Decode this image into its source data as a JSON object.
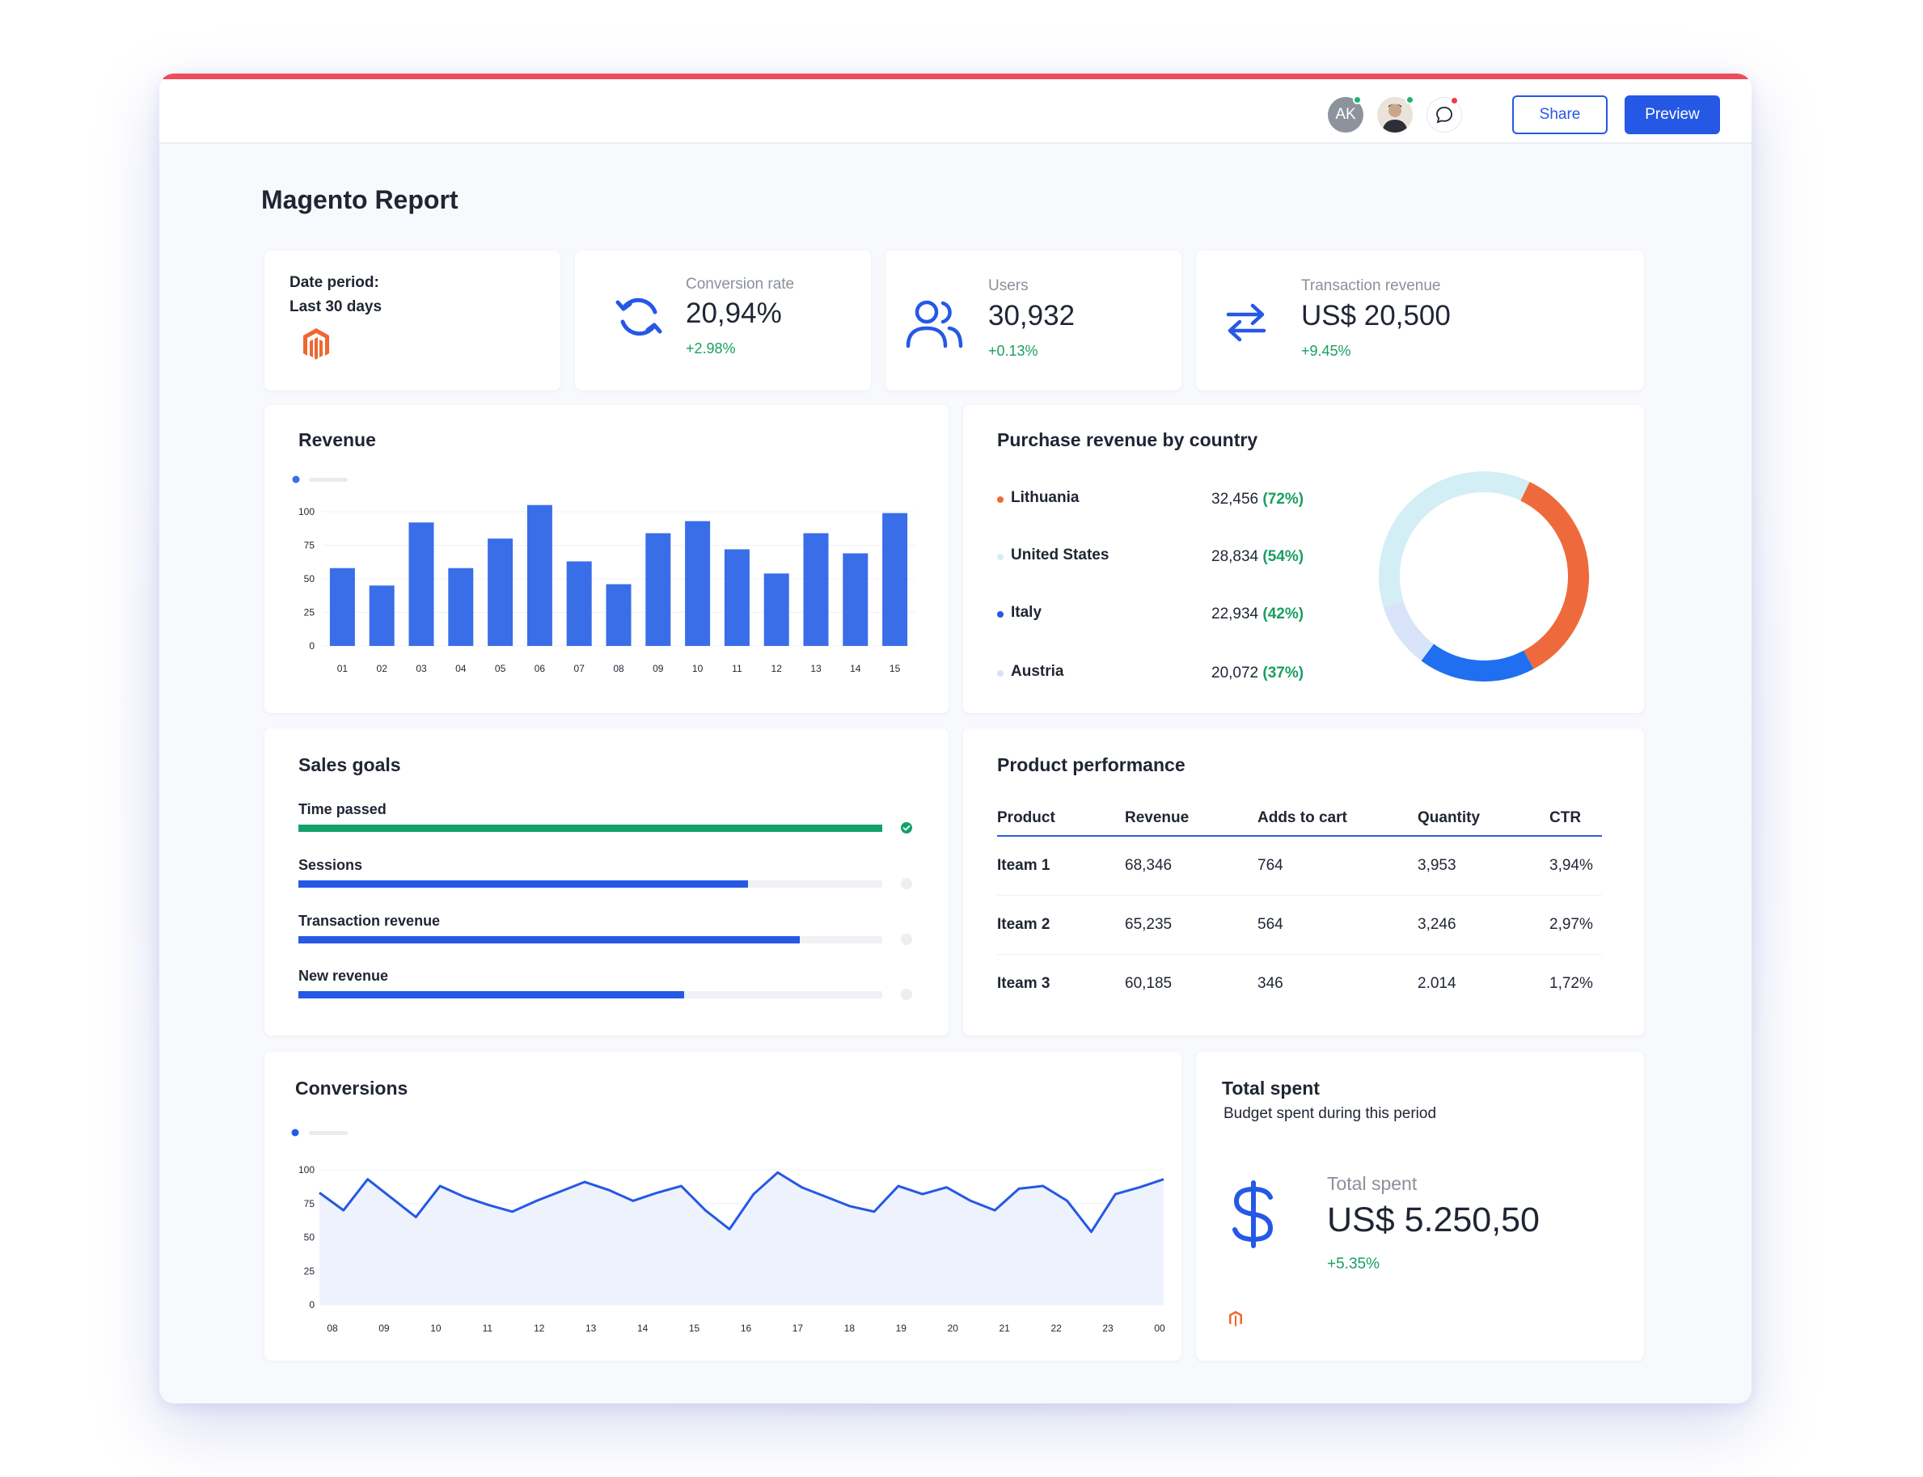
{
  "topbar": {
    "avatar_initials": "AK",
    "share_label": "Share",
    "preview_label": "Preview",
    "icons": [
      "chat-icon"
    ]
  },
  "page": {
    "title": "Magento Report"
  },
  "date_period": {
    "label": "Date period:",
    "value": "Last 30 days",
    "logo": "magento-logo"
  },
  "kpis": {
    "conversion": {
      "label": "Conversion rate",
      "value": "20,94%",
      "delta": "+2.98%",
      "icon": "refresh-icon"
    },
    "users": {
      "label": "Users",
      "value": "30,932",
      "delta": "+0.13%",
      "icon": "users-icon"
    },
    "transaction": {
      "label": "Transaction revenue",
      "value": "US$ 20,500",
      "delta": "+9.45%",
      "icon": "swap-arrows-icon"
    }
  },
  "revenue": {
    "title": "Revenue",
    "chart_data": {
      "type": "bar",
      "categories": [
        "01",
        "02",
        "03",
        "04",
        "05",
        "06",
        "07",
        "08",
        "09",
        "10",
        "11",
        "12",
        "13",
        "14",
        "15"
      ],
      "values": [
        58,
        45,
        92,
        58,
        80,
        105,
        63,
        46,
        84,
        93,
        72,
        54,
        84,
        69,
        99
      ],
      "yticks": [
        "0",
        "25",
        "50",
        "75",
        "100"
      ],
      "ylim": [
        0,
        110
      ],
      "color": "#3a6ee8"
    }
  },
  "countries": {
    "title": "Purchase revenue by country",
    "items": [
      {
        "name": "Lithuania",
        "value": "32,456",
        "pct": "(72%)",
        "color": "#ee6a3c"
      },
      {
        "name": "United States",
        "value": "28,834",
        "pct": "(54%)",
        "color": "#d4eef4"
      },
      {
        "name": "Italy",
        "value": "22,934",
        "pct": "(42%)",
        "color": "#2558e5"
      },
      {
        "name": "Austria",
        "value": "20,072",
        "pct": "(37%)",
        "color": "#d7e2f8"
      }
    ],
    "chart_data": {
      "type": "pie",
      "labels": [
        "Lithuania",
        "Italy",
        "Austria",
        "United States"
      ],
      "values": [
        35,
        18,
        10,
        37
      ],
      "colors": [
        "#ee6a3c",
        "#1f6ff0",
        "#d9e4fa",
        "#d3eff5"
      ]
    }
  },
  "sales_goals": {
    "title": "Sales goals",
    "items": [
      {
        "label": "Time passed",
        "progress": 1.0,
        "color": "#14a06a",
        "done": true
      },
      {
        "label": "Sessions",
        "progress": 0.77,
        "color": "#2558e5",
        "done": false
      },
      {
        "label": "Transaction revenue",
        "progress": 0.859,
        "color": "#2558e5",
        "done": false
      },
      {
        "label": "New revenue",
        "progress": 0.66,
        "color": "#2558e5",
        "done": false
      }
    ]
  },
  "products": {
    "title": "Product performance",
    "columns": [
      "Product",
      "Revenue",
      "Adds to cart",
      "Quantity",
      "CTR"
    ],
    "rows": [
      [
        "Iteam 1",
        "68,346",
        "764",
        "3,953",
        "3,94%"
      ],
      [
        "Iteam 2",
        "65,235",
        "564",
        "3,246",
        "2,97%"
      ],
      [
        "Iteam 3",
        "60,185",
        "346",
        "2.014",
        "1,72%"
      ]
    ]
  },
  "conversions": {
    "title": "Conversions",
    "chart_data": {
      "type": "area",
      "x_labels": [
        "08",
        "09",
        "10",
        "11",
        "12",
        "13",
        "14",
        "15",
        "16",
        "17",
        "18",
        "19",
        "20",
        "21",
        "22",
        "23",
        "00"
      ],
      "values": [
        83,
        70,
        93,
        79,
        65,
        88,
        80,
        74,
        69,
        77,
        84,
        91,
        85,
        77,
        83,
        88,
        70,
        56,
        82,
        98,
        87,
        80,
        73,
        69,
        88,
        82,
        87,
        77,
        70,
        86,
        88,
        77,
        54,
        82,
        87,
        93
      ],
      "yticks": [
        "0",
        "25",
        "50",
        "75",
        "100"
      ],
      "ylim": [
        0,
        100
      ],
      "color": "#2558e5"
    }
  },
  "total_spent": {
    "title": "Total spent",
    "subtitle": "Budget spent during this period",
    "label": "Total spent",
    "value": "US$ 5.250,50",
    "delta": "+5.35%",
    "icon": "dollar-icon"
  }
}
